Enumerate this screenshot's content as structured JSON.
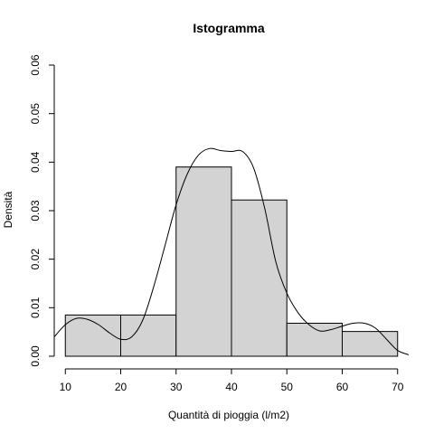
{
  "chart_data": {
    "type": "bar",
    "title": "Istogramma",
    "xlabel": "Quantità di pioggia (l/m2)",
    "ylabel": "Densità",
    "xlim": [
      8,
      72
    ],
    "ylim": [
      0,
      0.06
    ],
    "x_ticks": [
      10,
      20,
      30,
      40,
      50,
      60,
      70
    ],
    "x_tick_labels": [
      "10",
      "20",
      "30",
      "40",
      "50",
      "60",
      "70"
    ],
    "y_ticks": [
      0,
      0.01,
      0.02,
      0.03,
      0.04,
      0.05,
      0.06
    ],
    "y_tick_labels": [
      "0.00",
      "0.01",
      "0.02",
      "0.03",
      "0.04",
      "0.05",
      "0.06"
    ],
    "bins": [
      {
        "x0": 10,
        "x1": 20,
        "density": 0.0085
      },
      {
        "x0": 20,
        "x1": 30,
        "density": 0.0085
      },
      {
        "x0": 30,
        "x1": 40,
        "density": 0.039
      },
      {
        "x0": 40,
        "x1": 50,
        "density": 0.0322
      },
      {
        "x0": 50,
        "x1": 60,
        "density": 0.0068
      },
      {
        "x0": 60,
        "x1": 70,
        "density": 0.0051
      }
    ],
    "density_curve": {
      "x": [
        8,
        10,
        12,
        14,
        16,
        18,
        20,
        22,
        24,
        26,
        28,
        30,
        32,
        34,
        36,
        38,
        40,
        42,
        44,
        46,
        48,
        50,
        52,
        54,
        56,
        58,
        60,
        62,
        64,
        66,
        68,
        70,
        72
      ],
      "y": [
        0.004,
        0.0065,
        0.0078,
        0.0076,
        0.0065,
        0.0048,
        0.0035,
        0.004,
        0.0075,
        0.0145,
        0.0228,
        0.0312,
        0.0375,
        0.0414,
        0.0428,
        0.0424,
        0.0422,
        0.0422,
        0.0388,
        0.0305,
        0.0195,
        0.013,
        0.009,
        0.0065,
        0.0052,
        0.0055,
        0.0062,
        0.0068,
        0.0068,
        0.0058,
        0.0035,
        0.0012,
        0.0003
      ]
    },
    "grid": false,
    "legend": "none"
  }
}
